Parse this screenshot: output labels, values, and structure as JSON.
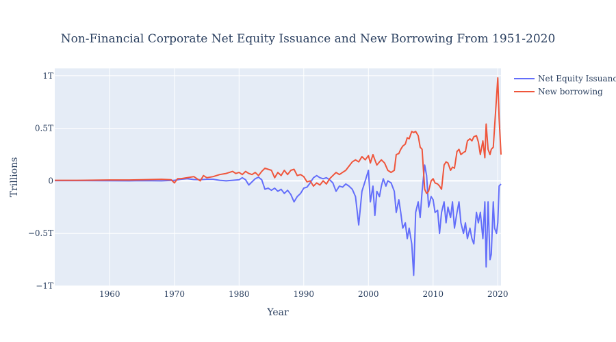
{
  "chart_data": {
    "type": "line",
    "title": "Non-Financial Corporate Net Equity Issuance and New Borrowing From 1951-2020",
    "xlabel": "Year",
    "ylabel": "Trillions",
    "xlim": [
      1951.5,
      2020.5
    ],
    "ylim": [
      -1.0,
      1.07
    ],
    "x_ticks": [
      1960,
      1970,
      1980,
      1990,
      2000,
      2010,
      2020
    ],
    "x_tick_labels": [
      "1960",
      "1970",
      "1980",
      "1990",
      "2000",
      "2010",
      "2020"
    ],
    "y_ticks": [
      1.0,
      0.5,
      0,
      -0.5,
      -1.0
    ],
    "y_tick_labels": [
      "1T",
      "0.5T",
      "0",
      "−0.5T",
      "−1T"
    ],
    "grid": true,
    "legend_position": "top-right",
    "series": [
      {
        "name": "Net Equity Issuance",
        "color": "#636efa",
        "points": [
          [
            1951.5,
            0.002
          ],
          [
            1955,
            0.002
          ],
          [
            1960,
            0.001
          ],
          [
            1963,
            0.0
          ],
          [
            1965,
            0.002
          ],
          [
            1968,
            0.0
          ],
          [
            1970,
            0.005
          ],
          [
            1971,
            0.015
          ],
          [
            1972,
            0.02
          ],
          [
            1973,
            0.012
          ],
          [
            1974,
            0.01
          ],
          [
            1975,
            0.015
          ],
          [
            1976,
            0.015
          ],
          [
            1977,
            0.005
          ],
          [
            1978,
            0.0
          ],
          [
            1979,
            0.005
          ],
          [
            1980,
            0.01
          ],
          [
            1980.5,
            0.03
          ],
          [
            1981,
            0.01
          ],
          [
            1981.5,
            -0.04
          ],
          [
            1982,
            -0.01
          ],
          [
            1982.5,
            0.02
          ],
          [
            1983,
            0.035
          ],
          [
            1983.5,
            0.01
          ],
          [
            1984,
            -0.08
          ],
          [
            1984.5,
            -0.07
          ],
          [
            1985,
            -0.09
          ],
          [
            1985.5,
            -0.07
          ],
          [
            1986,
            -0.1
          ],
          [
            1986.5,
            -0.08
          ],
          [
            1987,
            -0.12
          ],
          [
            1987.5,
            -0.09
          ],
          [
            1988,
            -0.13
          ],
          [
            1988.5,
            -0.2
          ],
          [
            1989,
            -0.15
          ],
          [
            1989.5,
            -0.12
          ],
          [
            1990,
            -0.07
          ],
          [
            1990.5,
            -0.06
          ],
          [
            1991,
            -0.02
          ],
          [
            1991.5,
            0.03
          ],
          [
            1992,
            0.05
          ],
          [
            1992.5,
            0.03
          ],
          [
            1993,
            0.02
          ],
          [
            1993.5,
            0.03
          ],
          [
            1994,
            0.01
          ],
          [
            1994.5,
            -0.02
          ],
          [
            1995,
            -0.1
          ],
          [
            1995.5,
            -0.05
          ],
          [
            1996,
            -0.06
          ],
          [
            1996.5,
            -0.03
          ],
          [
            1997,
            -0.05
          ],
          [
            1997.5,
            -0.08
          ],
          [
            1998,
            -0.15
          ],
          [
            1998.5,
            -0.42
          ],
          [
            1999,
            -0.1
          ],
          [
            1999.5,
            0.0
          ],
          [
            2000,
            0.1
          ],
          [
            2000.3,
            -0.2
          ],
          [
            2000.7,
            -0.05
          ],
          [
            2001,
            -0.33
          ],
          [
            2001.3,
            -0.1
          ],
          [
            2001.7,
            -0.15
          ],
          [
            2002,
            -0.05
          ],
          [
            2002.3,
            0.02
          ],
          [
            2002.7,
            -0.05
          ],
          [
            2003,
            0.0
          ],
          [
            2003.5,
            -0.02
          ],
          [
            2004,
            -0.1
          ],
          [
            2004.3,
            -0.3
          ],
          [
            2004.7,
            -0.18
          ],
          [
            2005,
            -0.3
          ],
          [
            2005.3,
            -0.45
          ],
          [
            2005.7,
            -0.4
          ],
          [
            2006,
            -0.55
          ],
          [
            2006.3,
            -0.45
          ],
          [
            2006.7,
            -0.6
          ],
          [
            2007,
            -0.9
          ],
          [
            2007.3,
            -0.3
          ],
          [
            2007.7,
            -0.2
          ],
          [
            2008,
            -0.35
          ],
          [
            2008.3,
            -0.1
          ],
          [
            2008.7,
            0.15
          ],
          [
            2009,
            0.05
          ],
          [
            2009.3,
            -0.25
          ],
          [
            2009.7,
            -0.15
          ],
          [
            2010,
            -0.18
          ],
          [
            2010.3,
            -0.3
          ],
          [
            2010.7,
            -0.28
          ],
          [
            2011,
            -0.5
          ],
          [
            2011.3,
            -0.3
          ],
          [
            2011.7,
            -0.2
          ],
          [
            2012,
            -0.4
          ],
          [
            2012.3,
            -0.25
          ],
          [
            2012.7,
            -0.35
          ],
          [
            2013,
            -0.2
          ],
          [
            2013.3,
            -0.45
          ],
          [
            2013.7,
            -0.3
          ],
          [
            2014,
            -0.2
          ],
          [
            2014.3,
            -0.4
          ],
          [
            2014.7,
            -0.5
          ],
          [
            2015,
            -0.4
          ],
          [
            2015.3,
            -0.55
          ],
          [
            2015.7,
            -0.45
          ],
          [
            2016,
            -0.55
          ],
          [
            2016.3,
            -0.6
          ],
          [
            2016.7,
            -0.3
          ],
          [
            2017,
            -0.4
          ],
          [
            2017.3,
            -0.3
          ],
          [
            2017.7,
            -0.55
          ],
          [
            2018,
            -0.2
          ],
          [
            2018.2,
            -0.82
          ],
          [
            2018.5,
            -0.2
          ],
          [
            2018.8,
            -0.75
          ],
          [
            2019,
            -0.7
          ],
          [
            2019.3,
            -0.2
          ],
          [
            2019.5,
            -0.45
          ],
          [
            2019.8,
            -0.5
          ],
          [
            2020,
            -0.4
          ],
          [
            2020.2,
            -0.05
          ],
          [
            2020.5,
            -0.03
          ]
        ]
      },
      {
        "name": "New borrowing",
        "color": "#ef553b",
        "points": [
          [
            1951.5,
            0.005
          ],
          [
            1955,
            0.005
          ],
          [
            1960,
            0.008
          ],
          [
            1963,
            0.008
          ],
          [
            1965,
            0.01
          ],
          [
            1968,
            0.015
          ],
          [
            1969.5,
            0.01
          ],
          [
            1970,
            -0.02
          ],
          [
            1970.5,
            0.02
          ],
          [
            1971,
            0.02
          ],
          [
            1972,
            0.03
          ],
          [
            1973,
            0.04
          ],
          [
            1974,
            0.0
          ],
          [
            1974.5,
            0.05
          ],
          [
            1975,
            0.03
          ],
          [
            1976,
            0.04
          ],
          [
            1977,
            0.06
          ],
          [
            1978,
            0.07
          ],
          [
            1979,
            0.09
          ],
          [
            1979.5,
            0.07
          ],
          [
            1980,
            0.08
          ],
          [
            1980.5,
            0.06
          ],
          [
            1981,
            0.09
          ],
          [
            1981.5,
            0.07
          ],
          [
            1982,
            0.06
          ],
          [
            1982.5,
            0.08
          ],
          [
            1983,
            0.05
          ],
          [
            1983.5,
            0.09
          ],
          [
            1984,
            0.12
          ],
          [
            1984.5,
            0.11
          ],
          [
            1985,
            0.1
          ],
          [
            1985.5,
            0.03
          ],
          [
            1986,
            0.08
          ],
          [
            1986.5,
            0.05
          ],
          [
            1987,
            0.1
          ],
          [
            1987.5,
            0.06
          ],
          [
            1988,
            0.1
          ],
          [
            1988.5,
            0.11
          ],
          [
            1989,
            0.05
          ],
          [
            1989.5,
            0.06
          ],
          [
            1990,
            0.04
          ],
          [
            1990.5,
            -0.01
          ],
          [
            1991,
            0.0
          ],
          [
            1991.5,
            -0.05
          ],
          [
            1992,
            -0.02
          ],
          [
            1992.5,
            -0.04
          ],
          [
            1993,
            0.0
          ],
          [
            1993.5,
            -0.03
          ],
          [
            1994,
            0.02
          ],
          [
            1994.5,
            0.05
          ],
          [
            1995,
            0.08
          ],
          [
            1995.5,
            0.06
          ],
          [
            1996,
            0.08
          ],
          [
            1996.5,
            0.1
          ],
          [
            1997,
            0.14
          ],
          [
            1997.5,
            0.18
          ],
          [
            1998,
            0.2
          ],
          [
            1998.5,
            0.18
          ],
          [
            1999,
            0.23
          ],
          [
            1999.5,
            0.2
          ],
          [
            2000,
            0.24
          ],
          [
            2000.3,
            0.17
          ],
          [
            2000.7,
            0.25
          ],
          [
            2001,
            0.2
          ],
          [
            2001.3,
            0.15
          ],
          [
            2001.7,
            0.18
          ],
          [
            2002,
            0.2
          ],
          [
            2002.5,
            0.17
          ],
          [
            2003,
            0.1
          ],
          [
            2003.5,
            0.08
          ],
          [
            2004,
            0.1
          ],
          [
            2004.3,
            0.25
          ],
          [
            2004.7,
            0.26
          ],
          [
            2005,
            0.3
          ],
          [
            2005.3,
            0.33
          ],
          [
            2005.7,
            0.35
          ],
          [
            2006,
            0.41
          ],
          [
            2006.3,
            0.4
          ],
          [
            2006.7,
            0.47
          ],
          [
            2007,
            0.46
          ],
          [
            2007.3,
            0.47
          ],
          [
            2007.7,
            0.43
          ],
          [
            2008,
            0.32
          ],
          [
            2008.3,
            0.3
          ],
          [
            2008.7,
            -0.08
          ],
          [
            2009,
            -0.12
          ],
          [
            2009.3,
            -0.1
          ],
          [
            2009.7,
            0.0
          ],
          [
            2010,
            0.02
          ],
          [
            2010.3,
            -0.02
          ],
          [
            2010.7,
            -0.03
          ],
          [
            2011,
            -0.05
          ],
          [
            2011.3,
            -0.08
          ],
          [
            2011.7,
            0.15
          ],
          [
            2012,
            0.18
          ],
          [
            2012.3,
            0.17
          ],
          [
            2012.7,
            0.1
          ],
          [
            2013,
            0.13
          ],
          [
            2013.3,
            0.12
          ],
          [
            2013.7,
            0.28
          ],
          [
            2014,
            0.3
          ],
          [
            2014.3,
            0.25
          ],
          [
            2014.7,
            0.27
          ],
          [
            2015,
            0.28
          ],
          [
            2015.3,
            0.38
          ],
          [
            2015.7,
            0.4
          ],
          [
            2016,
            0.38
          ],
          [
            2016.3,
            0.42
          ],
          [
            2016.7,
            0.43
          ],
          [
            2017,
            0.37
          ],
          [
            2017.3,
            0.25
          ],
          [
            2017.7,
            0.38
          ],
          [
            2018,
            0.22
          ],
          [
            2018.2,
            0.54
          ],
          [
            2018.5,
            0.3
          ],
          [
            2018.8,
            0.25
          ],
          [
            2019,
            0.3
          ],
          [
            2019.3,
            0.32
          ],
          [
            2019.6,
            0.6
          ],
          [
            2020,
            0.98
          ],
          [
            2020.2,
            0.6
          ],
          [
            2020.5,
            0.25
          ]
        ]
      }
    ]
  }
}
